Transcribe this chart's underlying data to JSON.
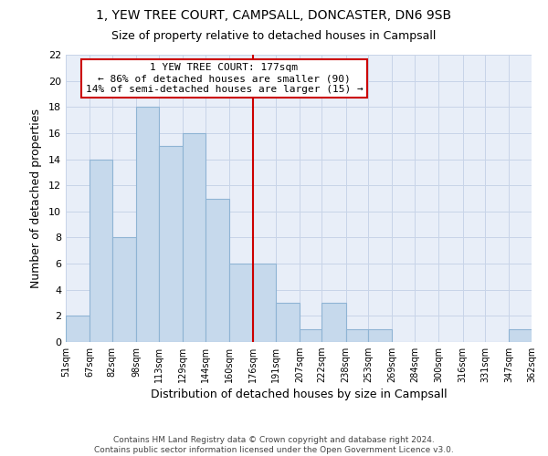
{
  "title_line1": "1, YEW TREE COURT, CAMPSALL, DONCASTER, DN6 9SB",
  "title_line2": "Size of property relative to detached houses in Campsall",
  "xlabel": "Distribution of detached houses by size in Campsall",
  "ylabel": "Number of detached properties",
  "bin_edges": [
    51,
    67,
    82,
    98,
    113,
    129,
    144,
    160,
    176,
    191,
    207,
    222,
    238,
    253,
    269,
    284,
    300,
    316,
    331,
    347,
    362
  ],
  "counts": [
    2,
    14,
    8,
    18,
    15,
    16,
    11,
    6,
    6,
    3,
    1,
    3,
    1,
    1,
    0,
    0,
    0,
    0,
    0,
    1
  ],
  "bar_color": "#c6d9ec",
  "bar_edge_color": "#8fb4d4",
  "vline_x": 176,
  "vline_color": "#cc0000",
  "annotation_title": "1 YEW TREE COURT: 177sqm",
  "annotation_line2": "← 86% of detached houses are smaller (90)",
  "annotation_line3": "14% of semi-detached houses are larger (15) →",
  "annotation_box_color": "#ffffff",
  "annotation_box_edge": "#cc0000",
  "ylim": [
    0,
    22
  ],
  "tick_labels": [
    "51sqm",
    "67sqm",
    "82sqm",
    "98sqm",
    "113sqm",
    "129sqm",
    "144sqm",
    "160sqm",
    "176sqm",
    "191sqm",
    "207sqm",
    "222sqm",
    "238sqm",
    "253sqm",
    "269sqm",
    "284sqm",
    "300sqm",
    "316sqm",
    "331sqm",
    "347sqm",
    "362sqm"
  ],
  "footer_line1": "Contains HM Land Registry data © Crown copyright and database right 2024.",
  "footer_line2": "Contains public sector information licensed under the Open Government Licence v3.0.",
  "background_color": "#ffffff",
  "axes_bg_color": "#e8eef8",
  "grid_color": "#c8d4e8"
}
